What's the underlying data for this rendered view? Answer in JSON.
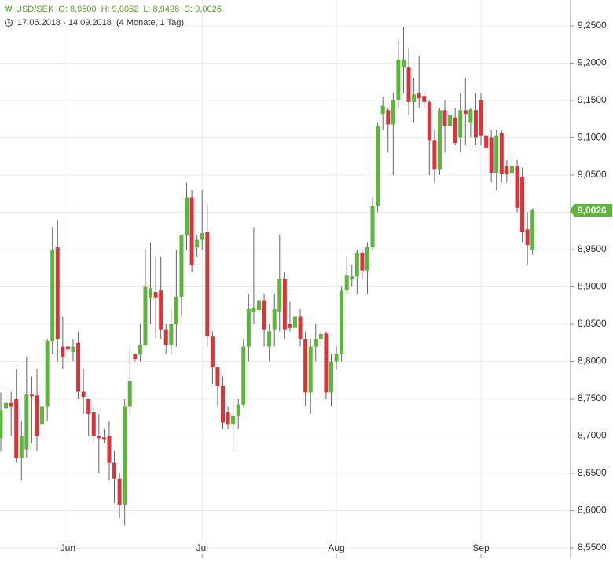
{
  "chart_data": {
    "type": "candlestick",
    "header": {
      "symbol": "USD/SEK",
      "open": "O: 8,9500",
      "high": "H: 9,0052",
      "low": "L: 8,9428",
      "close": "C: 9,0026",
      "range": "17.05.2018 - 14.09.2018",
      "duration": "(4 Monate, 1 Tag)"
    },
    "last_price": {
      "value": 9.0026,
      "label": "9,0026"
    },
    "up_color": "#5cb63a",
    "down_color": "#d8353a",
    "grid": true,
    "ylim": [
      8.5363,
      9.2847
    ],
    "yticks": [
      {
        "value": 8.55,
        "label": "8,5500"
      },
      {
        "value": 8.6,
        "label": "8,6000"
      },
      {
        "value": 8.65,
        "label": "8,6500"
      },
      {
        "value": 8.7,
        "label": "8,7000"
      },
      {
        "value": 8.75,
        "label": "8,7500"
      },
      {
        "value": 8.8,
        "label": "8,8000"
      },
      {
        "value": 8.85,
        "label": "8,8500"
      },
      {
        "value": 8.9,
        "label": "8,9000"
      },
      {
        "value": 8.95,
        "label": "8,9500"
      },
      {
        "value": 9.0,
        "label": "9,0000"
      },
      {
        "value": 9.05,
        "label": "9,0500"
      },
      {
        "value": 9.1,
        "label": "9,1000"
      },
      {
        "value": 9.15,
        "label": "9,1500"
      },
      {
        "value": 9.2,
        "label": "9,2000"
      },
      {
        "value": 9.25,
        "label": "9,2500"
      }
    ],
    "categories": [
      null,
      null,
      null,
      null,
      null,
      null,
      null,
      null,
      null,
      null,
      null,
      null,
      null,
      "Jun",
      null,
      null,
      null,
      null,
      null,
      null,
      null,
      null,
      null,
      null,
      null,
      null,
      null,
      null,
      null,
      null,
      null,
      null,
      null,
      null,
      null,
      null,
      null,
      null,
      null,
      "Jul",
      null,
      null,
      null,
      null,
      null,
      null,
      null,
      null,
      null,
      null,
      null,
      null,
      null,
      null,
      null,
      null,
      null,
      null,
      null,
      null,
      null,
      null,
      null,
      null,
      null,
      "Aug",
      null,
      null,
      null,
      null,
      null,
      null,
      null,
      null,
      null,
      null,
      null,
      null,
      null,
      null,
      null,
      null,
      null,
      null,
      null,
      null,
      null,
      null,
      null,
      null,
      null,
      null,
      null,
      "Sep",
      null,
      null,
      null,
      null,
      null,
      null,
      null,
      null,
      null,
      null
    ],
    "open": [
      8.697,
      8.737,
      8.745,
      8.75,
      8.67,
      8.682,
      8.756,
      8.755,
      8.716,
      8.74,
      8.827,
      8.953,
      8.82,
      8.82,
      8.813,
      8.825,
      8.76,
      8.75,
      8.732,
      8.7,
      8.698,
      8.7,
      8.664,
      8.643,
      8.608,
      8.74,
      8.81,
      8.81,
      8.822,
      8.885,
      8.893,
      8.895,
      8.843,
      8.822,
      8.85,
      8.887,
      8.97,
      9.02,
      8.953,
      8.963,
      8.974,
      8.834,
      8.792,
      8.767,
      8.732,
      8.716,
      8.727,
      8.742,
      8.82,
      8.866,
      8.869,
      8.882,
      8.82,
      8.843,
      8.867,
      8.911,
      8.85,
      8.845,
      8.86,
      8.83,
      8.758,
      8.82,
      8.83,
      8.838,
      8.758,
      8.8,
      8.81,
      8.895,
      8.911,
      8.914,
      8.946,
      8.922,
      8.953,
      9.009,
      9.132,
      9.137,
      9.118,
      9.15,
      9.195,
      9.195,
      9.148,
      9.16,
      9.156,
      9.148,
      9.097,
      9.058,
      9.137,
      9.116,
      9.127,
      9.1,
      9.137,
      9.12,
      9.137,
      9.15,
      9.103,
      9.1,
      9.053,
      9.106,
      9.062,
      9.053,
      9.062,
      9.048,
      8.977,
      8.95
    ],
    "high": [
      8.758,
      8.764,
      8.76,
      8.79,
      8.72,
      8.806,
      8.78,
      8.79,
      8.77,
      8.83,
      8.98,
      8.99,
      8.86,
      8.83,
      8.83,
      8.84,
      8.79,
      8.75,
      8.74,
      8.73,
      8.71,
      8.72,
      8.68,
      8.65,
      8.75,
      8.82,
      8.81,
      8.85,
      8.95,
      8.96,
      8.94,
      8.94,
      8.85,
      8.87,
      8.95,
      8.97,
      9.04,
      9.03,
      8.97,
      9.03,
      9.01,
      8.84,
      8.79,
      8.78,
      8.74,
      8.75,
      8.75,
      8.83,
      8.89,
      8.98,
      8.89,
      8.89,
      8.85,
      8.89,
      8.97,
      8.92,
      8.88,
      8.89,
      8.87,
      8.84,
      8.83,
      8.85,
      8.84,
      8.84,
      8.81,
      8.82,
      8.9,
      8.94,
      8.93,
      8.95,
      8.95,
      8.96,
      9.02,
      9.12,
      9.155,
      9.14,
      9.16,
      9.23,
      9.248,
      9.22,
      9.18,
      9.21,
      9.16,
      9.15,
      9.11,
      9.14,
      9.15,
      9.14,
      9.14,
      9.16,
      9.18,
      9.14,
      9.16,
      9.16,
      9.15,
      9.11,
      9.11,
      9.11,
      9.07,
      9.08,
      9.07,
      9.06,
      9.0,
      9.0052
    ],
    "low": [
      8.679,
      8.711,
      8.7,
      8.664,
      8.64,
      8.67,
      8.69,
      8.68,
      8.7,
      8.72,
      8.81,
      8.8,
      8.79,
      8.8,
      8.8,
      8.75,
      8.73,
      8.7,
      8.69,
      8.65,
      8.69,
      8.64,
      8.61,
      8.59,
      8.58,
      8.73,
      8.8,
      8.8,
      8.82,
      8.85,
      8.83,
      8.83,
      8.81,
      8.81,
      8.82,
      8.86,
      8.95,
      8.92,
      8.94,
      8.95,
      8.82,
      8.77,
      8.74,
      8.71,
      8.71,
      8.68,
      8.71,
      8.74,
      8.8,
      8.85,
      8.86,
      8.82,
      8.8,
      8.82,
      8.84,
      8.83,
      8.84,
      8.84,
      8.82,
      8.74,
      8.73,
      8.8,
      8.82,
      8.75,
      8.74,
      8.79,
      8.8,
      8.89,
      8.9,
      8.89,
      8.91,
      8.89,
      8.95,
      9.0,
      9.11,
      9.08,
      9.05,
      9.14,
      9.16,
      9.13,
      9.12,
      9.14,
      9.14,
      9.05,
      9.04,
      9.05,
      9.08,
      9.1,
      9.09,
      9.08,
      9.09,
      9.1,
      9.09,
      9.09,
      9.06,
      9.04,
      9.03,
      9.04,
      9.04,
      9.05,
      9.0,
      8.96,
      8.93,
      8.9428
    ],
    "close": [
      8.735,
      8.745,
      8.74,
      8.671,
      8.7,
      8.756,
      8.753,
      8.7,
      8.74,
      8.827,
      8.95,
      8.83,
      8.806,
      8.816,
      8.82,
      8.76,
      8.752,
      8.73,
      8.7,
      8.697,
      8.696,
      8.664,
      8.643,
      8.608,
      8.74,
      8.774,
      8.803,
      8.822,
      8.9,
      8.898,
      8.885,
      8.843,
      8.822,
      8.85,
      8.887,
      8.97,
      9.02,
      8.93,
      8.963,
      8.972,
      8.834,
      8.792,
      8.767,
      8.718,
      8.716,
      8.727,
      8.742,
      8.82,
      8.87,
      8.872,
      8.882,
      8.843,
      8.84,
      8.87,
      8.911,
      8.843,
      8.845,
      8.86,
      8.83,
      8.758,
      8.82,
      8.83,
      8.837,
      8.758,
      8.8,
      8.81,
      8.895,
      8.916,
      8.914,
      8.946,
      8.922,
      8.953,
      9.009,
      9.116,
      9.143,
      9.118,
      9.15,
      9.205,
      9.205,
      9.148,
      9.158,
      9.153,
      9.148,
      9.097,
      9.058,
      9.137,
      9.116,
      9.13,
      9.093,
      9.137,
      9.132,
      9.138,
      9.1,
      9.103,
      9.087,
      9.053,
      9.103,
      9.051,
      9.051,
      9.062,
      9.006,
      8.974,
      8.956,
      9.0026
    ]
  }
}
